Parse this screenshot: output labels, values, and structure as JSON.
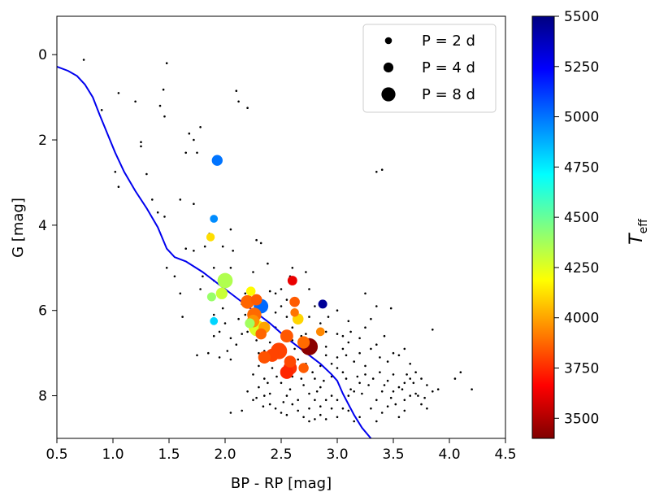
{
  "chart_data": {
    "type": "scatter",
    "xlabel": "BP - RP [mag]",
    "ylabel": "G [mag]",
    "xlim": [
      0.5,
      4.5
    ],
    "ylim": [
      9.0,
      -0.9
    ],
    "xticks": [
      "0.5",
      "1.0",
      "1.5",
      "2.0",
      "2.5",
      "3.0",
      "3.5",
      "4.0",
      "4.5"
    ],
    "xtick_values": [
      0.5,
      1.0,
      1.5,
      2.0,
      2.5,
      3.0,
      3.5,
      4.0,
      4.5
    ],
    "yticks": [
      "0",
      "2",
      "4",
      "6",
      "8"
    ],
    "ytick_values": [
      0,
      2,
      4,
      6,
      8
    ],
    "legend": {
      "placement": "top-right",
      "entries": [
        {
          "label": "P = 2 d",
          "period": 2
        },
        {
          "label": "P = 4 d",
          "period": 4
        },
        {
          "label": "P = 8 d",
          "period": 8
        }
      ]
    },
    "colorbar": {
      "label": "T",
      "label_subscript": "eff",
      "range": [
        3400,
        5500
      ],
      "ticks": [
        "3500",
        "3750",
        "4000",
        "4250",
        "4500",
        "4750",
        "5000",
        "5250",
        "5500"
      ],
      "tick_values": [
        3500,
        3750,
        4000,
        4250,
        4500,
        4750,
        5000,
        5250,
        5500
      ],
      "colormap": [
        "#800000",
        "#ff0000",
        "#ff8000",
        "#ffff00",
        "#80ff80",
        "#00ffff",
        "#0080ff",
        "#0000ff",
        "#000080"
      ]
    },
    "main_sequence_line": {
      "color": "#0000ee",
      "points": [
        [
          0.5,
          0.28
        ],
        [
          0.6,
          0.38
        ],
        [
          0.68,
          0.5
        ],
        [
          0.75,
          0.7
        ],
        [
          0.82,
          1.0
        ],
        [
          0.88,
          1.4
        ],
        [
          0.95,
          1.85
        ],
        [
          1.02,
          2.3
        ],
        [
          1.1,
          2.75
        ],
        [
          1.2,
          3.2
        ],
        [
          1.3,
          3.6
        ],
        [
          1.4,
          4.05
        ],
        [
          1.48,
          4.55
        ],
        [
          1.55,
          4.75
        ],
        [
          1.65,
          4.85
        ],
        [
          1.8,
          5.1
        ],
        [
          2.0,
          5.5
        ],
        [
          2.2,
          5.9
        ],
        [
          2.4,
          6.3
        ],
        [
          2.55,
          6.65
        ],
        [
          2.7,
          6.95
        ],
        [
          2.85,
          7.25
        ],
        [
          2.95,
          7.5
        ],
        [
          3.0,
          7.65
        ],
        [
          3.05,
          7.95
        ],
        [
          3.1,
          8.2
        ],
        [
          3.15,
          8.45
        ],
        [
          3.22,
          8.75
        ],
        [
          3.3,
          9.0
        ]
      ]
    },
    "background_stars": [
      [
        0.74,
        0.12
      ],
      [
        0.9,
        1.3
      ],
      [
        1.05,
        0.9
      ],
      [
        1.2,
        1.1
      ],
      [
        1.45,
        0.82
      ],
      [
        1.48,
        0.2
      ],
      [
        1.42,
        1.2
      ],
      [
        1.46,
        1.45
      ],
      [
        1.25,
        2.05
      ],
      [
        1.25,
        2.15
      ],
      [
        1.02,
        2.75
      ],
      [
        1.05,
        3.1
      ],
      [
        1.3,
        2.8
      ],
      [
        1.35,
        3.4
      ],
      [
        1.4,
        3.7
      ],
      [
        1.46,
        3.8
      ],
      [
        1.6,
        3.4
      ],
      [
        1.72,
        3.5
      ],
      [
        1.65,
        2.3
      ],
      [
        1.75,
        2.3
      ],
      [
        1.72,
        2.0
      ],
      [
        1.68,
        1.85
      ],
      [
        1.78,
        1.7
      ],
      [
        2.1,
        0.85
      ],
      [
        2.12,
        1.1
      ],
      [
        2.2,
        1.25
      ],
      [
        1.86,
        4.2
      ],
      [
        2.05,
        4.1
      ],
      [
        1.65,
        4.55
      ],
      [
        1.72,
        4.6
      ],
      [
        1.82,
        4.5
      ],
      [
        1.98,
        4.5
      ],
      [
        1.48,
        5.0
      ],
      [
        1.55,
        5.2
      ],
      [
        1.8,
        5.2
      ],
      [
        1.9,
        5.3
      ],
      [
        2.05,
        5.0
      ],
      [
        2.25,
        5.1
      ],
      [
        2.38,
        4.9
      ],
      [
        2.33,
        5.8
      ],
      [
        2.18,
        5.6
      ],
      [
        2.28,
        4.35
      ],
      [
        2.32,
        4.42
      ],
      [
        2.6,
        5.0
      ],
      [
        2.5,
        5.5
      ],
      [
        2.72,
        5.1
      ],
      [
        2.58,
        5.2
      ],
      [
        2.75,
        5.5
      ],
      [
        2.8,
        5.9
      ],
      [
        3.0,
        6.0
      ],
      [
        3.25,
        5.6
      ],
      [
        3.35,
        5.9
      ],
      [
        3.48,
        5.95
      ],
      [
        2.9,
        6.5
      ],
      [
        3.1,
        6.25
      ],
      [
        3.35,
        6.8
      ],
      [
        3.4,
        2.7
      ],
      [
        3.35,
        2.75
      ],
      [
        3.85,
        6.45
      ],
      [
        4.1,
        7.45
      ],
      [
        4.05,
        7.6
      ],
      [
        3.9,
        7.85
      ],
      [
        4.2,
        7.85
      ],
      [
        3.8,
        8.3
      ],
      [
        3.6,
        8.35
      ],
      [
        3.55,
        8.5
      ],
      [
        3.6,
        8.1
      ],
      [
        3.7,
        7.95
      ],
      [
        3.65,
        7.6
      ],
      [
        3.5,
        7.5
      ],
      [
        3.55,
        7.8
      ],
      [
        3.45,
        7.65
      ],
      [
        3.4,
        7.9
      ],
      [
        3.35,
        8.1
      ],
      [
        3.3,
        8.3
      ],
      [
        3.25,
        7.5
      ],
      [
        3.2,
        7.7
      ],
      [
        3.15,
        7.9
      ],
      [
        3.1,
        8.0
      ],
      [
        3.05,
        8.3
      ],
      [
        3.0,
        8.5
      ],
      [
        2.95,
        8.3
      ],
      [
        2.9,
        8.1
      ],
      [
        2.85,
        8.45
      ],
      [
        2.8,
        8.55
      ],
      [
        2.75,
        8.3
      ],
      [
        2.85,
        7.8
      ],
      [
        2.8,
        7.6
      ],
      [
        2.75,
        7.95
      ],
      [
        2.7,
        7.75
      ],
      [
        2.65,
        8.1
      ],
      [
        2.6,
        7.55
      ],
      [
        2.55,
        8.0
      ],
      [
        2.5,
        7.7
      ],
      [
        2.45,
        8.3
      ],
      [
        2.4,
        7.95
      ],
      [
        2.35,
        7.6
      ],
      [
        2.3,
        7.3
      ],
      [
        2.25,
        7.5
      ],
      [
        2.3,
        7.8
      ],
      [
        3.0,
        7.1
      ],
      [
        3.05,
        6.9
      ],
      [
        3.1,
        6.75
      ],
      [
        3.15,
        7.2
      ],
      [
        3.2,
        7.0
      ],
      [
        3.25,
        7.3
      ],
      [
        3.3,
        6.9
      ],
      [
        3.38,
        7.1
      ],
      [
        3.45,
        7.2
      ],
      [
        3.0,
        7.35
      ],
      [
        2.95,
        7.55
      ],
      [
        2.9,
        7.05
      ],
      [
        2.85,
        7.3
      ],
      [
        2.8,
        6.95
      ],
      [
        2.7,
        6.85
      ],
      [
        2.65,
        7.15
      ],
      [
        2.6,
        6.7
      ],
      [
        2.55,
        6.5
      ],
      [
        2.45,
        6.4
      ],
      [
        2.4,
        6.75
      ],
      [
        2.35,
        6.95
      ],
      [
        2.3,
        7.0
      ],
      [
        2.28,
        6.7
      ],
      [
        2.2,
        6.5
      ],
      [
        2.15,
        6.55
      ],
      [
        2.1,
        6.8
      ],
      [
        2.05,
        6.65
      ],
      [
        2.0,
        6.3
      ],
      [
        1.95,
        6.5
      ],
      [
        1.9,
        6.6
      ],
      [
        1.85,
        7.0
      ],
      [
        1.75,
        7.05
      ],
      [
        1.95,
        7.1
      ],
      [
        2.05,
        7.15
      ],
      [
        2.12,
        6.2
      ],
      [
        2.18,
        6.1
      ],
      [
        2.4,
        5.55
      ],
      [
        2.45,
        5.6
      ],
      [
        2.55,
        5.75
      ],
      [
        2.5,
        5.9
      ],
      [
        2.45,
        6.05
      ],
      [
        2.55,
        6.15
      ],
      [
        2.6,
        6.4
      ],
      [
        2.62,
        6.9
      ],
      [
        2.68,
        6.6
      ],
      [
        2.72,
        6.55
      ],
      [
        2.78,
        6.75
      ],
      [
        2.9,
        6.85
      ],
      [
        3.05,
        6.6
      ],
      [
        3.12,
        6.5
      ],
      [
        3.2,
        6.65
      ],
      [
        3.25,
        6.4
      ],
      [
        3.3,
        6.2
      ],
      [
        3.42,
        6.6
      ],
      [
        3.5,
        7.0
      ],
      [
        3.6,
        6.9
      ],
      [
        3.55,
        7.05
      ],
      [
        3.65,
        7.25
      ],
      [
        3.7,
        7.45
      ],
      [
        3.75,
        7.6
      ],
      [
        3.65,
        8.0
      ],
      [
        3.75,
        8.2
      ],
      [
        3.8,
        7.75
      ],
      [
        3.6,
        7.7
      ],
      [
        3.5,
        7.9
      ],
      [
        3.45,
        8.25
      ],
      [
        3.4,
        8.4
      ],
      [
        3.35,
        8.6
      ],
      [
        3.2,
        8.5
      ],
      [
        3.15,
        8.6
      ],
      [
        3.1,
        8.35
      ],
      [
        3.0,
        8.1
      ],
      [
        2.95,
        8.0
      ],
      [
        2.9,
        8.55
      ],
      [
        2.85,
        8.25
      ],
      [
        2.8,
        8.1
      ],
      [
        2.75,
        8.6
      ],
      [
        2.7,
        8.5
      ],
      [
        2.65,
        8.35
      ],
      [
        2.6,
        8.2
      ],
      [
        2.55,
        8.45
      ],
      [
        2.5,
        8.4
      ],
      [
        2.4,
        8.2
      ],
      [
        2.35,
        8.0
      ],
      [
        2.25,
        8.1
      ],
      [
        2.2,
        7.9
      ],
      [
        2.15,
        8.35
      ],
      [
        2.05,
        8.4
      ],
      [
        2.95,
        7.25
      ],
      [
        3.05,
        7.45
      ],
      [
        3.08,
        7.6
      ],
      [
        3.12,
        7.85
      ],
      [
        3.18,
        7.55
      ],
      [
        3.22,
        7.95
      ],
      [
        3.28,
        7.75
      ],
      [
        3.32,
        7.6
      ],
      [
        3.38,
        7.45
      ],
      [
        3.42,
        7.75
      ],
      [
        3.48,
        8.05
      ],
      [
        3.52,
        8.2
      ],
      [
        3.58,
        7.85
      ],
      [
        3.62,
        7.5
      ],
      [
        3.68,
        7.7
      ],
      [
        3.72,
        8.0
      ],
      [
        3.78,
        8.05
      ],
      [
        3.85,
        7.9
      ],
      [
        2.88,
        7.65
      ],
      [
        2.82,
        7.9
      ],
      [
        2.78,
        7.45
      ],
      [
        2.72,
        7.25
      ],
      [
        2.68,
        7.6
      ],
      [
        2.62,
        7.35
      ],
      [
        2.58,
        7.85
      ],
      [
        2.52,
        8.15
      ],
      [
        2.46,
        7.55
      ],
      [
        2.42,
        7.35
      ],
      [
        2.38,
        7.7
      ],
      [
        2.34,
        8.25
      ],
      [
        2.28,
        8.05
      ],
      [
        2.62,
        6.0
      ],
      [
        2.75,
        6.15
      ],
      [
        2.85,
        6.3
      ],
      [
        2.92,
        6.15
      ],
      [
        3.0,
        6.55
      ],
      [
        3.08,
        7.05
      ],
      [
        2.02,
        6.95
      ],
      [
        1.98,
        5.95
      ],
      [
        1.9,
        6.1
      ],
      [
        1.78,
        5.5
      ],
      [
        1.6,
        5.6
      ],
      [
        1.62,
        6.15
      ],
      [
        1.9,
        5.0
      ],
      [
        2.07,
        4.6
      ],
      [
        2.15,
        5.85
      ]
    ],
    "rotators": [
      {
        "bp_rp": 1.93,
        "g": 2.48,
        "teff": 5000,
        "period": 4.8
      },
      {
        "bp_rp": 1.9,
        "g": 3.85,
        "teff": 4950,
        "period": 2.6
      },
      {
        "bp_rp": 1.87,
        "g": 4.28,
        "teff": 4120,
        "period": 2.9
      },
      {
        "bp_rp": 2.0,
        "g": 5.3,
        "teff": 4350,
        "period": 9.5
      },
      {
        "bp_rp": 2.23,
        "g": 5.55,
        "teff": 4180,
        "period": 3.6
      },
      {
        "bp_rp": 1.97,
        "g": 5.6,
        "teff": 4300,
        "period": 5.5
      },
      {
        "bp_rp": 1.88,
        "g": 5.68,
        "teff": 4400,
        "period": 3.3
      },
      {
        "bp_rp": 1.9,
        "g": 6.25,
        "teff": 4800,
        "period": 2.6
      },
      {
        "bp_rp": 2.2,
        "g": 5.8,
        "teff": 3870,
        "period": 7.6
      },
      {
        "bp_rp": 2.28,
        "g": 5.75,
        "teff": 3850,
        "period": 5.2
      },
      {
        "bp_rp": 2.32,
        "g": 5.9,
        "teff": 5020,
        "period": 8.6
      },
      {
        "bp_rp": 2.26,
        "g": 6.1,
        "teff": 3880,
        "period": 8.2
      },
      {
        "bp_rp": 2.25,
        "g": 6.25,
        "teff": 3960,
        "period": 6.5
      },
      {
        "bp_rp": 2.22,
        "g": 6.3,
        "teff": 4380,
        "period": 4.0
      },
      {
        "bp_rp": 2.28,
        "g": 6.4,
        "teff": 4150,
        "period": 9.8
      },
      {
        "bp_rp": 2.35,
        "g": 6.4,
        "teff": 4000,
        "period": 5.5
      },
      {
        "bp_rp": 2.28,
        "g": 6.45,
        "teff": 4260,
        "period": 7.0
      },
      {
        "bp_rp": 2.32,
        "g": 6.55,
        "teff": 3870,
        "period": 5.0
      },
      {
        "bp_rp": 2.55,
        "g": 6.6,
        "teff": 3840,
        "period": 6.8
      },
      {
        "bp_rp": 2.6,
        "g": 5.3,
        "teff": 3620,
        "period": 3.8
      },
      {
        "bp_rp": 2.62,
        "g": 5.8,
        "teff": 3850,
        "period": 4.3
      },
      {
        "bp_rp": 2.62,
        "g": 6.05,
        "teff": 3900,
        "period": 3.0
      },
      {
        "bp_rp": 2.65,
        "g": 6.2,
        "teff": 4100,
        "period": 5.0
      },
      {
        "bp_rp": 2.87,
        "g": 5.85,
        "teff": 5450,
        "period": 3.3
      },
      {
        "bp_rp": 2.75,
        "g": 6.85,
        "teff": 3420,
        "period": 12.0
      },
      {
        "bp_rp": 2.7,
        "g": 6.75,
        "teff": 3880,
        "period": 6.2
      },
      {
        "bp_rp": 2.85,
        "g": 6.5,
        "teff": 3940,
        "period": 3.1
      },
      {
        "bp_rp": 2.48,
        "g": 6.95,
        "teff": 3800,
        "period": 11.0
      },
      {
        "bp_rp": 2.42,
        "g": 7.05,
        "teff": 3800,
        "period": 7.0
      },
      {
        "bp_rp": 2.35,
        "g": 7.1,
        "teff": 3830,
        "period": 6.2
      },
      {
        "bp_rp": 2.58,
        "g": 7.2,
        "teff": 3810,
        "period": 5.8
      },
      {
        "bp_rp": 2.58,
        "g": 7.35,
        "teff": 3760,
        "period": 7.5
      },
      {
        "bp_rp": 2.55,
        "g": 7.45,
        "teff": 3740,
        "period": 7.2
      },
      {
        "bp_rp": 2.7,
        "g": 7.35,
        "teff": 3850,
        "period": 4.2
      }
    ]
  }
}
